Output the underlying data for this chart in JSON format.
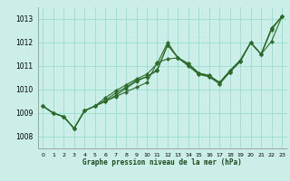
{
  "xlabel": "Graphe pression niveau de la mer (hPa)",
  "bg_color": "#cceee8",
  "grid_color": "#99ddcc",
  "line_color": "#2d6b2d",
  "ylim": [
    1007.5,
    1013.5
  ],
  "xlim": [
    -0.5,
    23.5
  ],
  "yticks": [
    1008,
    1009,
    1010,
    1011,
    1012,
    1013
  ],
  "xtick_labels": [
    "0",
    "1",
    "2",
    "3",
    "4",
    "5",
    "6",
    "7",
    "8",
    "9",
    "10",
    "11",
    "12",
    "13",
    "14",
    "15",
    "16",
    "17",
    "18",
    "19",
    "20",
    "21",
    "22",
    "23"
  ],
  "series1": [
    1009.3,
    1009.0,
    1008.85,
    1008.35,
    1009.1,
    1009.3,
    1009.5,
    1009.7,
    1009.9,
    1010.1,
    1010.3,
    1011.15,
    1011.3,
    1011.35,
    1011.0,
    1010.65,
    1010.55,
    1010.25,
    1010.75,
    1011.2,
    1012.0,
    1011.5,
    1012.05,
    1013.1
  ],
  "series2": [
    1009.3,
    1009.0,
    1008.85,
    1008.35,
    1009.1,
    1009.3,
    1009.5,
    1009.75,
    1010.05,
    1010.35,
    1010.55,
    1010.8,
    1011.9,
    1011.35,
    1011.05,
    1010.65,
    1010.55,
    1010.25,
    1010.75,
    1011.2,
    1012.0,
    1011.5,
    1012.55,
    1013.1
  ],
  "series3": [
    1009.3,
    1009.0,
    1008.85,
    1008.35,
    1009.1,
    1009.3,
    1009.55,
    1009.85,
    1010.1,
    1010.4,
    1010.55,
    1010.85,
    1011.9,
    1011.35,
    1011.1,
    1010.7,
    1010.6,
    1010.3,
    1010.8,
    1011.25,
    1012.0,
    1011.5,
    1012.6,
    1013.1
  ],
  "series4": [
    1009.3,
    1009.0,
    1008.85,
    1008.35,
    1009.1,
    1009.3,
    1009.65,
    1009.95,
    1010.2,
    1010.45,
    1010.65,
    1011.1,
    1012.0,
    1011.35,
    1011.1,
    1010.7,
    1010.6,
    1010.3,
    1010.8,
    1011.25,
    1012.0,
    1011.5,
    1012.6,
    1013.1
  ]
}
